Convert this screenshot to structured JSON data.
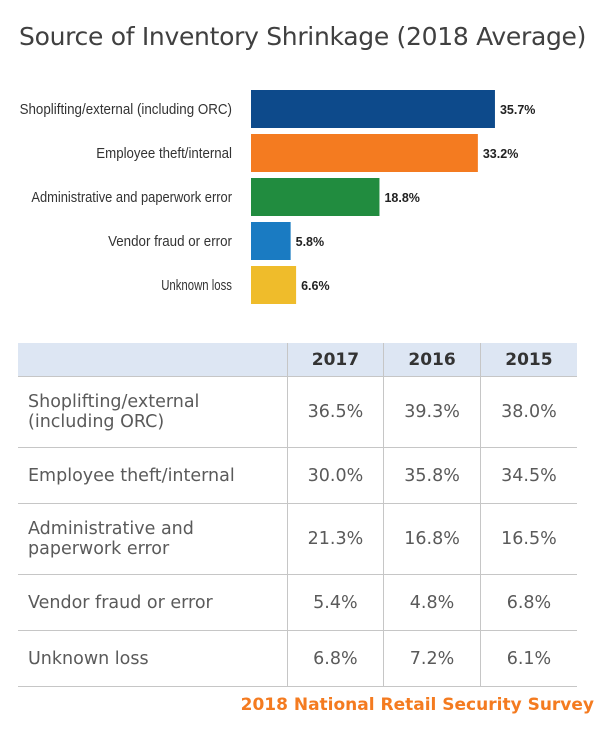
{
  "chart_data": {
    "type": "bar",
    "orientation": "horizontal",
    "title": "Source of Inventory Shrinkage (2018 Average)",
    "categories": [
      "Shoplifting/external (including ORC)",
      "Employee theft/internal",
      "Administrative and paperwork error",
      "Vendor fraud or error",
      "Unknown loss"
    ],
    "values": [
      35.7,
      33.2,
      18.8,
      5.8,
      6.6
    ],
    "value_labels": [
      "35.7%",
      "33.2%",
      "18.8%",
      "5.8%",
      "6.6%"
    ],
    "colors": [
      "#0d4a8b",
      "#f47b20",
      "#218c3f",
      "#1a7bc2",
      "#efbc2b"
    ],
    "xlim": [
      0,
      36
    ],
    "grid": false,
    "legend": "none"
  },
  "table": {
    "headers": [
      "",
      "2017",
      "2016",
      "2015"
    ],
    "rows": [
      {
        "label": "Shoplifting/external (including ORC)",
        "values": [
          "36.5%",
          "39.3%",
          "38.0%"
        ]
      },
      {
        "label": "Employee theft/internal",
        "values": [
          "30.0%",
          "35.8%",
          "34.5%"
        ]
      },
      {
        "label": "Administrative and paperwork error",
        "values": [
          "21.3%",
          "16.8%",
          "16.5%"
        ]
      },
      {
        "label": "Vendor fraud or error",
        "values": [
          "5.4%",
          "4.8%",
          "6.8%"
        ]
      },
      {
        "label": "Unknown loss",
        "values": [
          "6.8%",
          "7.2%",
          "6.1%"
        ]
      }
    ]
  },
  "source": "2018 National Retail Security Survey"
}
